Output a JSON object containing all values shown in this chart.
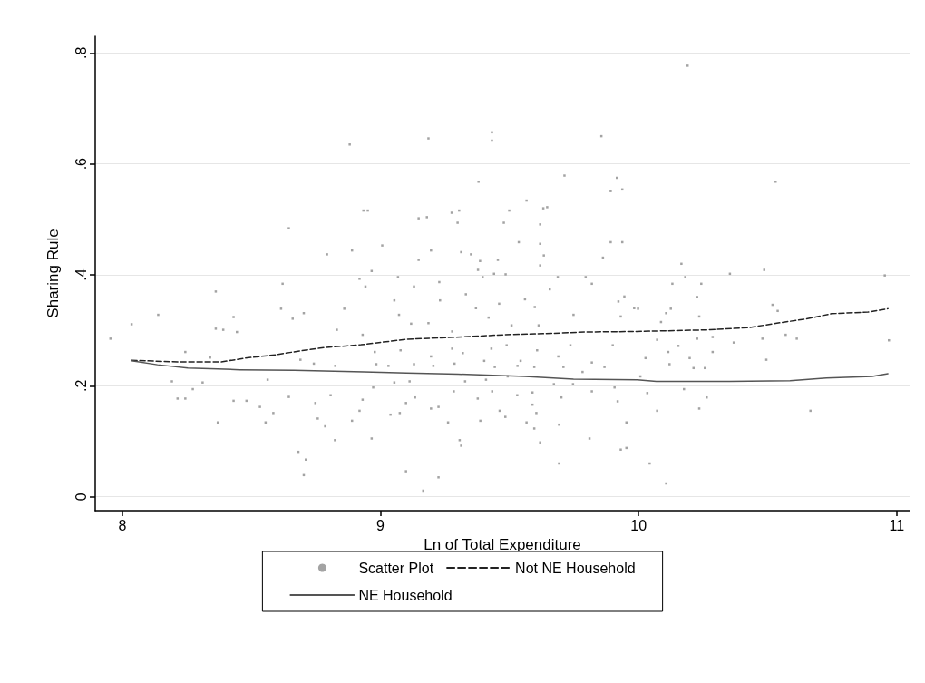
{
  "chart_data": {
    "type": "scatter",
    "xlabel": "Ln of Total Expenditure",
    "ylabel": "Sharing Rule",
    "xlim": [
      7.895,
      11.05
    ],
    "ylim": [
      -0.025,
      0.83
    ],
    "xticks": [
      8,
      9,
      10,
      11
    ],
    "yticks": [
      {
        "value": 0,
        "label": "0"
      },
      {
        "value": 0.2,
        "label": ".2"
      },
      {
        "value": 0.4,
        "label": ".4"
      },
      {
        "value": 0.6,
        "label": ".6"
      },
      {
        "value": 0.8,
        "label": ".8"
      }
    ],
    "grid": "y",
    "legend": "bottom",
    "series": [
      {
        "name": "Scatter Plot",
        "marker": "square",
        "color": "#8c8c8c",
        "x": [
          7.954,
          8.036,
          8.139,
          8.362,
          8.362,
          8.391,
          8.431,
          8.444,
          8.244,
          8.34,
          8.192,
          8.214,
          8.244,
          8.273,
          8.311,
          8.37,
          8.431,
          8.481,
          8.533,
          8.555,
          8.585,
          8.563,
          8.645,
          8.621,
          8.615,
          8.793,
          8.89,
          8.881,
          8.934,
          8.919,
          8.682,
          8.711,
          8.703,
          8.824,
          8.757,
          8.786,
          8.748,
          8.703,
          8.66,
          8.86,
          8.831,
          8.89,
          8.919,
          8.645,
          8.807,
          8.69,
          8.742,
          8.825,
          9.186,
          9.432,
          9.432,
          9.856,
          8.951,
          9.148,
          9.18,
          9.276,
          9.305,
          9.299,
          9.38,
          9.499,
          9.566,
          9.631,
          9.646,
          9.619,
          9.713,
          9.892,
          9.916,
          9.937,
          9.478,
          9.536,
          9.619,
          9.892,
          9.937,
          9.862,
          9.007,
          9.196,
          9.148,
          9.313,
          9.351,
          9.455,
          9.386,
          9.633,
          9.619,
          8.966,
          9.068,
          9.378,
          9.396,
          9.44,
          9.485,
          9.687,
          9.795,
          9.819,
          8.942,
          9.13,
          9.228,
          9.331,
          9.46,
          9.56,
          9.598,
          9.656,
          9.922,
          9.945,
          9.054,
          9.072,
          9.231,
          9.37,
          9.419,
          9.748,
          9.931,
          9.983,
          9.119,
          9.186,
          9.278,
          9.508,
          9.613,
          8.931,
          9.278,
          9.43,
          9.489,
          9.607,
          9.736,
          9.9,
          8.978,
          9.078,
          9.196,
          9.319,
          9.402,
          9.543,
          9.689,
          9.819,
          8.984,
          9.031,
          9.13,
          9.205,
          9.287,
          9.443,
          9.531,
          9.596,
          9.709,
          9.783,
          9.868,
          9.054,
          9.113,
          9.328,
          9.409,
          9.493,
          9.672,
          9.746,
          8.972,
          9.284,
          9.433,
          9.589,
          9.819,
          9.907,
          8.931,
          9.099,
          9.134,
          9.225,
          9.377,
          9.53,
          9.589,
          9.701,
          9.919,
          9.039,
          9.075,
          9.196,
          9.262,
          9.387,
          9.462,
          9.484,
          9.566,
          9.596,
          9.604,
          9.692,
          9.953,
          8.966,
          9.307,
          9.313,
          9.619,
          9.81,
          9.931,
          9.953,
          9.099,
          9.225,
          9.692,
          9.166,
          10.19,
          10.531,
          10.166,
          10.487,
          10.354,
          10.954,
          10.131,
          10.181,
          10.243,
          10.227,
          9.998,
          10.107,
          10.125,
          10.519,
          10.539,
          10.235,
          10.087,
          10.227,
          10.287,
          10.369,
          10.48,
          10.57,
          10.613,
          10.97,
          10.072,
          10.154,
          10.115,
          10.287,
          10.027,
          10.198,
          10.12,
          10.213,
          10.257,
          10.495,
          10.007,
          10.176,
          10.034,
          10.264,
          10.072,
          10.235,
          10.666,
          10.043,
          10.107
        ],
        "values": [
          0.285,
          0.311,
          0.328,
          0.37,
          0.303,
          0.301,
          0.324,
          0.297,
          0.261,
          0.251,
          0.208,
          0.177,
          0.177,
          0.194,
          0.206,
          0.134,
          0.173,
          0.173,
          0.162,
          0.134,
          0.151,
          0.211,
          0.484,
          0.384,
          0.339,
          0.437,
          0.444,
          0.635,
          0.516,
          0.393,
          0.081,
          0.067,
          0.039,
          0.102,
          0.141,
          0.127,
          0.169,
          0.331,
          0.321,
          0.339,
          0.301,
          0.137,
          0.155,
          0.18,
          0.183,
          0.247,
          0.24,
          0.236,
          0.646,
          0.657,
          0.642,
          0.65,
          0.516,
          0.502,
          0.504,
          0.512,
          0.516,
          0.494,
          0.568,
          0.516,
          0.534,
          0.52,
          0.522,
          0.491,
          0.579,
          0.551,
          0.575,
          0.554,
          0.494,
          0.459,
          0.456,
          0.459,
          0.459,
          0.431,
          0.453,
          0.444,
          0.427,
          0.441,
          0.437,
          0.427,
          0.425,
          0.435,
          0.417,
          0.407,
          0.396,
          0.409,
          0.396,
          0.402,
          0.401,
          0.396,
          0.396,
          0.384,
          0.379,
          0.379,
          0.387,
          0.365,
          0.348,
          0.356,
          0.342,
          0.374,
          0.352,
          0.361,
          0.354,
          0.328,
          0.354,
          0.34,
          0.323,
          0.328,
          0.325,
          0.34,
          0.312,
          0.313,
          0.298,
          0.309,
          0.309,
          0.292,
          0.267,
          0.267,
          0.273,
          0.264,
          0.273,
          0.273,
          0.261,
          0.264,
          0.253,
          0.259,
          0.245,
          0.245,
          0.253,
          0.242,
          0.239,
          0.236,
          0.239,
          0.236,
          0.24,
          0.234,
          0.236,
          0.234,
          0.234,
          0.225,
          0.234,
          0.206,
          0.208,
          0.208,
          0.211,
          0.217,
          0.203,
          0.203,
          0.197,
          0.19,
          0.19,
          0.188,
          0.19,
          0.197,
          0.175,
          0.169,
          0.179,
          0.162,
          0.177,
          0.183,
          0.166,
          0.179,
          0.172,
          0.148,
          0.151,
          0.159,
          0.134,
          0.137,
          0.155,
          0.144,
          0.134,
          0.123,
          0.151,
          0.13,
          0.134,
          0.105,
          0.102,
          0.092,
          0.098,
          0.105,
          0.085,
          0.088,
          0.046,
          0.035,
          0.06,
          0.011,
          0.777,
          0.568,
          0.42,
          0.409,
          0.402,
          0.399,
          0.384,
          0.396,
          0.384,
          0.36,
          0.339,
          0.331,
          0.339,
          0.346,
          0.335,
          0.325,
          0.315,
          0.285,
          0.288,
          0.278,
          0.285,
          0.292,
          0.285,
          0.282,
          0.283,
          0.272,
          0.261,
          0.261,
          0.25,
          0.25,
          0.239,
          0.232,
          0.232,
          0.247,
          0.217,
          0.194,
          0.187,
          0.179,
          0.155,
          0.159,
          0.155,
          0.06,
          0.024
        ]
      },
      {
        "name": "Not NE Household",
        "type": "line",
        "line_style": "dashed",
        "marker": "none",
        "color": "#222222",
        "x": [
          8.036,
          8.218,
          8.383,
          8.477,
          8.595,
          8.689,
          8.783,
          8.925,
          9.101,
          9.313,
          9.478,
          9.631,
          9.795,
          9.995,
          10.277,
          10.43,
          10.536,
          10.642,
          10.748,
          10.889,
          10.966
        ],
        "values": [
          0.246,
          0.243,
          0.243,
          0.25,
          0.256,
          0.263,
          0.269,
          0.274,
          0.284,
          0.288,
          0.292,
          0.294,
          0.297,
          0.298,
          0.301,
          0.305,
          0.313,
          0.32,
          0.33,
          0.333,
          0.339
        ]
      },
      {
        "name": "NE Household",
        "type": "line",
        "line_style": "solid",
        "marker": "none",
        "color": "#555555",
        "x": [
          8.036,
          8.136,
          8.254,
          8.454,
          8.666,
          8.936,
          9.101,
          9.301,
          9.56,
          9.748,
          9.995,
          10.069,
          10.352,
          10.587,
          10.728,
          10.905,
          10.966
        ],
        "values": [
          0.245,
          0.238,
          0.232,
          0.229,
          0.228,
          0.225,
          0.223,
          0.221,
          0.217,
          0.212,
          0.211,
          0.208,
          0.208,
          0.209,
          0.214,
          0.217,
          0.222
        ]
      }
    ]
  }
}
